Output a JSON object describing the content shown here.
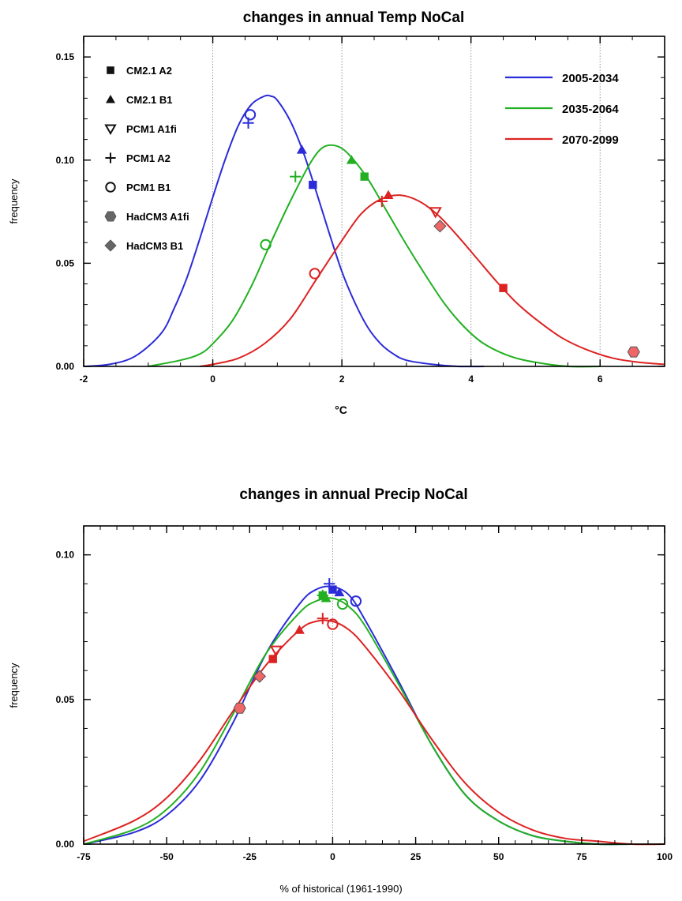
{
  "chart_data": [
    {
      "type": "line",
      "title": "changes in annual Temp NoCal",
      "xlabel": "°C",
      "ylabel": "frequency",
      "xlim": [
        -2,
        7
      ],
      "ylim": [
        0,
        0.16
      ],
      "xticks": [
        -2,
        0,
        2,
        4,
        6
      ],
      "xtick_labels": [
        "-2",
        "0",
        "2",
        "4",
        "6"
      ],
      "yticks": [
        0,
        0.05,
        0.1,
        0.15
      ],
      "ytick_labels": [
        "0.00",
        "0.05",
        "0.10",
        "0.15"
      ],
      "grid": "vertical dotted lines at x ticks",
      "legend_position": "top-right",
      "series": [
        {
          "name": "2005-2034",
          "color": "#2b2bd9",
          "x": [
            -2.0,
            -1.6,
            -1.2,
            -0.8,
            -0.6,
            -0.4,
            -0.2,
            0.0,
            0.2,
            0.4,
            0.6,
            0.8,
            0.9,
            1.0,
            1.2,
            1.4,
            1.6,
            1.8,
            2.0,
            2.2,
            2.4,
            2.6,
            2.8,
            3.0,
            3.4,
            3.8,
            4.2
          ],
          "y": [
            0.0,
            0.001,
            0.005,
            0.016,
            0.028,
            0.043,
            0.062,
            0.082,
            0.101,
            0.117,
            0.127,
            0.131,
            0.131,
            0.129,
            0.119,
            0.104,
            0.085,
            0.065,
            0.046,
            0.031,
            0.019,
            0.011,
            0.006,
            0.003,
            0.001,
            0.0,
            0.0
          ]
        },
        {
          "name": "2035-2064",
          "color": "#22b022",
          "x": [
            -1.0,
            -0.5,
            -0.2,
            0.0,
            0.3,
            0.6,
            0.9,
            1.2,
            1.5,
            1.7,
            1.9,
            2.1,
            2.4,
            2.7,
            3.0,
            3.3,
            3.6,
            3.9,
            4.2,
            4.6,
            5.0,
            5.5,
            6.0
          ],
          "y": [
            0.0,
            0.003,
            0.006,
            0.011,
            0.022,
            0.039,
            0.06,
            0.08,
            0.098,
            0.106,
            0.107,
            0.103,
            0.091,
            0.075,
            0.059,
            0.044,
            0.03,
            0.019,
            0.011,
            0.005,
            0.002,
            0.0,
            0.0
          ]
        },
        {
          "name": "2070-2099",
          "color": "#dd2222",
          "x": [
            -0.2,
            0.0,
            0.4,
            0.8,
            1.2,
            1.6,
            2.0,
            2.3,
            2.6,
            2.9,
            3.2,
            3.5,
            3.8,
            4.1,
            4.4,
            4.7,
            5.0,
            5.4,
            5.8,
            6.2,
            6.6,
            7.0
          ],
          "y": [
            0.0,
            0.001,
            0.004,
            0.011,
            0.023,
            0.042,
            0.061,
            0.074,
            0.081,
            0.083,
            0.08,
            0.073,
            0.063,
            0.052,
            0.041,
            0.031,
            0.023,
            0.014,
            0.008,
            0.004,
            0.002,
            0.001
          ]
        }
      ],
      "markers": [
        {
          "model": "CM2.1 A2",
          "period": "2005-2034",
          "x": 1.55,
          "y": 0.088
        },
        {
          "model": "CM2.1 A2",
          "period": "2035-2064",
          "x": 2.35,
          "y": 0.092
        },
        {
          "model": "CM2.1 A2",
          "period": "2070-2099",
          "x": 4.5,
          "y": 0.038
        },
        {
          "model": "CM2.1 B1",
          "period": "2005-2034",
          "x": 1.38,
          "y": 0.105
        },
        {
          "model": "CM2.1 B1",
          "period": "2035-2064",
          "x": 2.15,
          "y": 0.1
        },
        {
          "model": "CM2.1 B1",
          "period": "2070-2099",
          "x": 2.72,
          "y": 0.083
        },
        {
          "model": "PCM1 A1fi",
          "period": "2070-2099",
          "x": 3.45,
          "y": 0.075
        },
        {
          "model": "PCM1 A2",
          "period": "2005-2034",
          "x": 0.55,
          "y": 0.118
        },
        {
          "model": "PCM1 A2",
          "period": "2035-2064",
          "x": 1.28,
          "y": 0.092
        },
        {
          "model": "PCM1 A2",
          "period": "2070-2099",
          "x": 2.62,
          "y": 0.08
        },
        {
          "model": "PCM1 B1",
          "period": "2005-2034",
          "x": 0.58,
          "y": 0.122
        },
        {
          "model": "PCM1 B1",
          "period": "2035-2064",
          "x": 0.82,
          "y": 0.059
        },
        {
          "model": "PCM1 B1",
          "period": "2070-2099",
          "x": 1.58,
          "y": 0.045
        },
        {
          "model": "HadCM3 A1fi",
          "period": "2070-2099",
          "x": 6.52,
          "y": 0.007
        },
        {
          "model": "HadCM3 B1",
          "period": "2070-2099",
          "x": 3.52,
          "y": 0.068
        }
      ]
    },
    {
      "type": "line",
      "title": "changes in annual Precip NoCal",
      "xlabel": "% of historical (1961-1990)",
      "ylabel": "frequency",
      "xlim": [
        -75,
        100
      ],
      "ylim": [
        0,
        0.11
      ],
      "xticks": [
        -75,
        -50,
        -25,
        0,
        25,
        50,
        75,
        100
      ],
      "xtick_labels": [
        "-75",
        "-50",
        "-25",
        "0",
        "25",
        "50",
        "75",
        "100"
      ],
      "yticks": [
        0,
        0.05,
        0.1
      ],
      "ytick_labels": [
        "0.00",
        "0.05",
        "0.10"
      ],
      "grid": "vertical dotted line at x = 0",
      "series": [
        {
          "name": "2005-2034",
          "color": "#2b2bd9",
          "x": [
            -75,
            -60,
            -50,
            -40,
            -30,
            -20,
            -10,
            -5,
            0,
            5,
            10,
            20,
            30,
            40,
            50,
            60,
            70,
            80,
            90,
            100
          ],
          "y": [
            0.0,
            0.004,
            0.01,
            0.022,
            0.042,
            0.066,
            0.083,
            0.088,
            0.089,
            0.086,
            0.077,
            0.056,
            0.034,
            0.017,
            0.008,
            0.003,
            0.001,
            0.0,
            0.0,
            0.0
          ]
        },
        {
          "name": "2035-2064",
          "color": "#22b022",
          "x": [
            -75,
            -60,
            -50,
            -40,
            -30,
            -20,
            -10,
            -5,
            0,
            5,
            10,
            20,
            30,
            40,
            50,
            60,
            70,
            80,
            90,
            100
          ],
          "y": [
            0.0,
            0.005,
            0.012,
            0.025,
            0.045,
            0.066,
            0.08,
            0.084,
            0.085,
            0.082,
            0.075,
            0.055,
            0.034,
            0.017,
            0.008,
            0.003,
            0.001,
            0.0,
            0.0,
            0.0
          ]
        },
        {
          "name": "2070-2099",
          "color": "#dd2222",
          "x": [
            -75,
            -60,
            -50,
            -40,
            -30,
            -20,
            -10,
            -5,
            0,
            5,
            10,
            20,
            30,
            40,
            50,
            60,
            70,
            80,
            90,
            100
          ],
          "y": [
            0.001,
            0.008,
            0.016,
            0.029,
            0.046,
            0.062,
            0.074,
            0.077,
            0.077,
            0.074,
            0.068,
            0.053,
            0.036,
            0.021,
            0.011,
            0.005,
            0.002,
            0.001,
            0.0,
            0.0
          ]
        }
      ],
      "markers": [
        {
          "model": "CM2.1 A2",
          "period": "2005-2034",
          "x": 0,
          "y": 0.088
        },
        {
          "model": "CM2.1 A2",
          "period": "2035-2064",
          "x": -3,
          "y": 0.086
        },
        {
          "model": "CM2.1 A2",
          "period": "2070-2099",
          "x": -18,
          "y": 0.064
        },
        {
          "model": "CM2.1 B1",
          "period": "2005-2034",
          "x": 2,
          "y": 0.087
        },
        {
          "model": "CM2.1 B1",
          "period": "2035-2064",
          "x": -2,
          "y": 0.085
        },
        {
          "model": "CM2.1 B1",
          "period": "2070-2099",
          "x": -10,
          "y": 0.074
        },
        {
          "model": "PCM1 A1fi",
          "period": "2070-2099",
          "x": -17,
          "y": 0.067
        },
        {
          "model": "PCM1 A2",
          "period": "2005-2034",
          "x": -1,
          "y": 0.09
        },
        {
          "model": "PCM1 A2",
          "period": "2035-2064",
          "x": -3,
          "y": 0.086
        },
        {
          "model": "PCM1 A2",
          "period": "2070-2099",
          "x": -3,
          "y": 0.078
        },
        {
          "model": "PCM1 B1",
          "period": "2005-2034",
          "x": 7,
          "y": 0.084
        },
        {
          "model": "PCM1 B1",
          "period": "2035-2064",
          "x": 3,
          "y": 0.083
        },
        {
          "model": "PCM1 B1",
          "period": "2070-2099",
          "x": 0,
          "y": 0.076
        },
        {
          "model": "HadCM3 A1fi",
          "period": "2070-2099",
          "x": -28,
          "y": 0.047
        },
        {
          "model": "HadCM3 B1",
          "period": "2070-2099",
          "x": -22,
          "y": 0.058
        }
      ]
    }
  ],
  "marker_legend": [
    {
      "label": "CM2.1 A2",
      "symbol": "filled-square"
    },
    {
      "label": "CM2.1 B1",
      "symbol": "filled-triangle"
    },
    {
      "label": "PCM1 A1fi",
      "symbol": "open-down-triangle"
    },
    {
      "label": "PCM1 A2",
      "symbol": "plus"
    },
    {
      "label": "PCM1 B1",
      "symbol": "open-circle"
    },
    {
      "label": "HadCM3 A1fi",
      "symbol": "filled-hexagon"
    },
    {
      "label": "HadCM3 B1",
      "symbol": "filled-diamond"
    }
  ],
  "period_legend": [
    {
      "label": "2005-2034",
      "color": "#2b2bd9"
    },
    {
      "label": "2035-2064",
      "color": "#22b022"
    },
    {
      "label": "2070-2099",
      "color": "#dd2222"
    }
  ]
}
